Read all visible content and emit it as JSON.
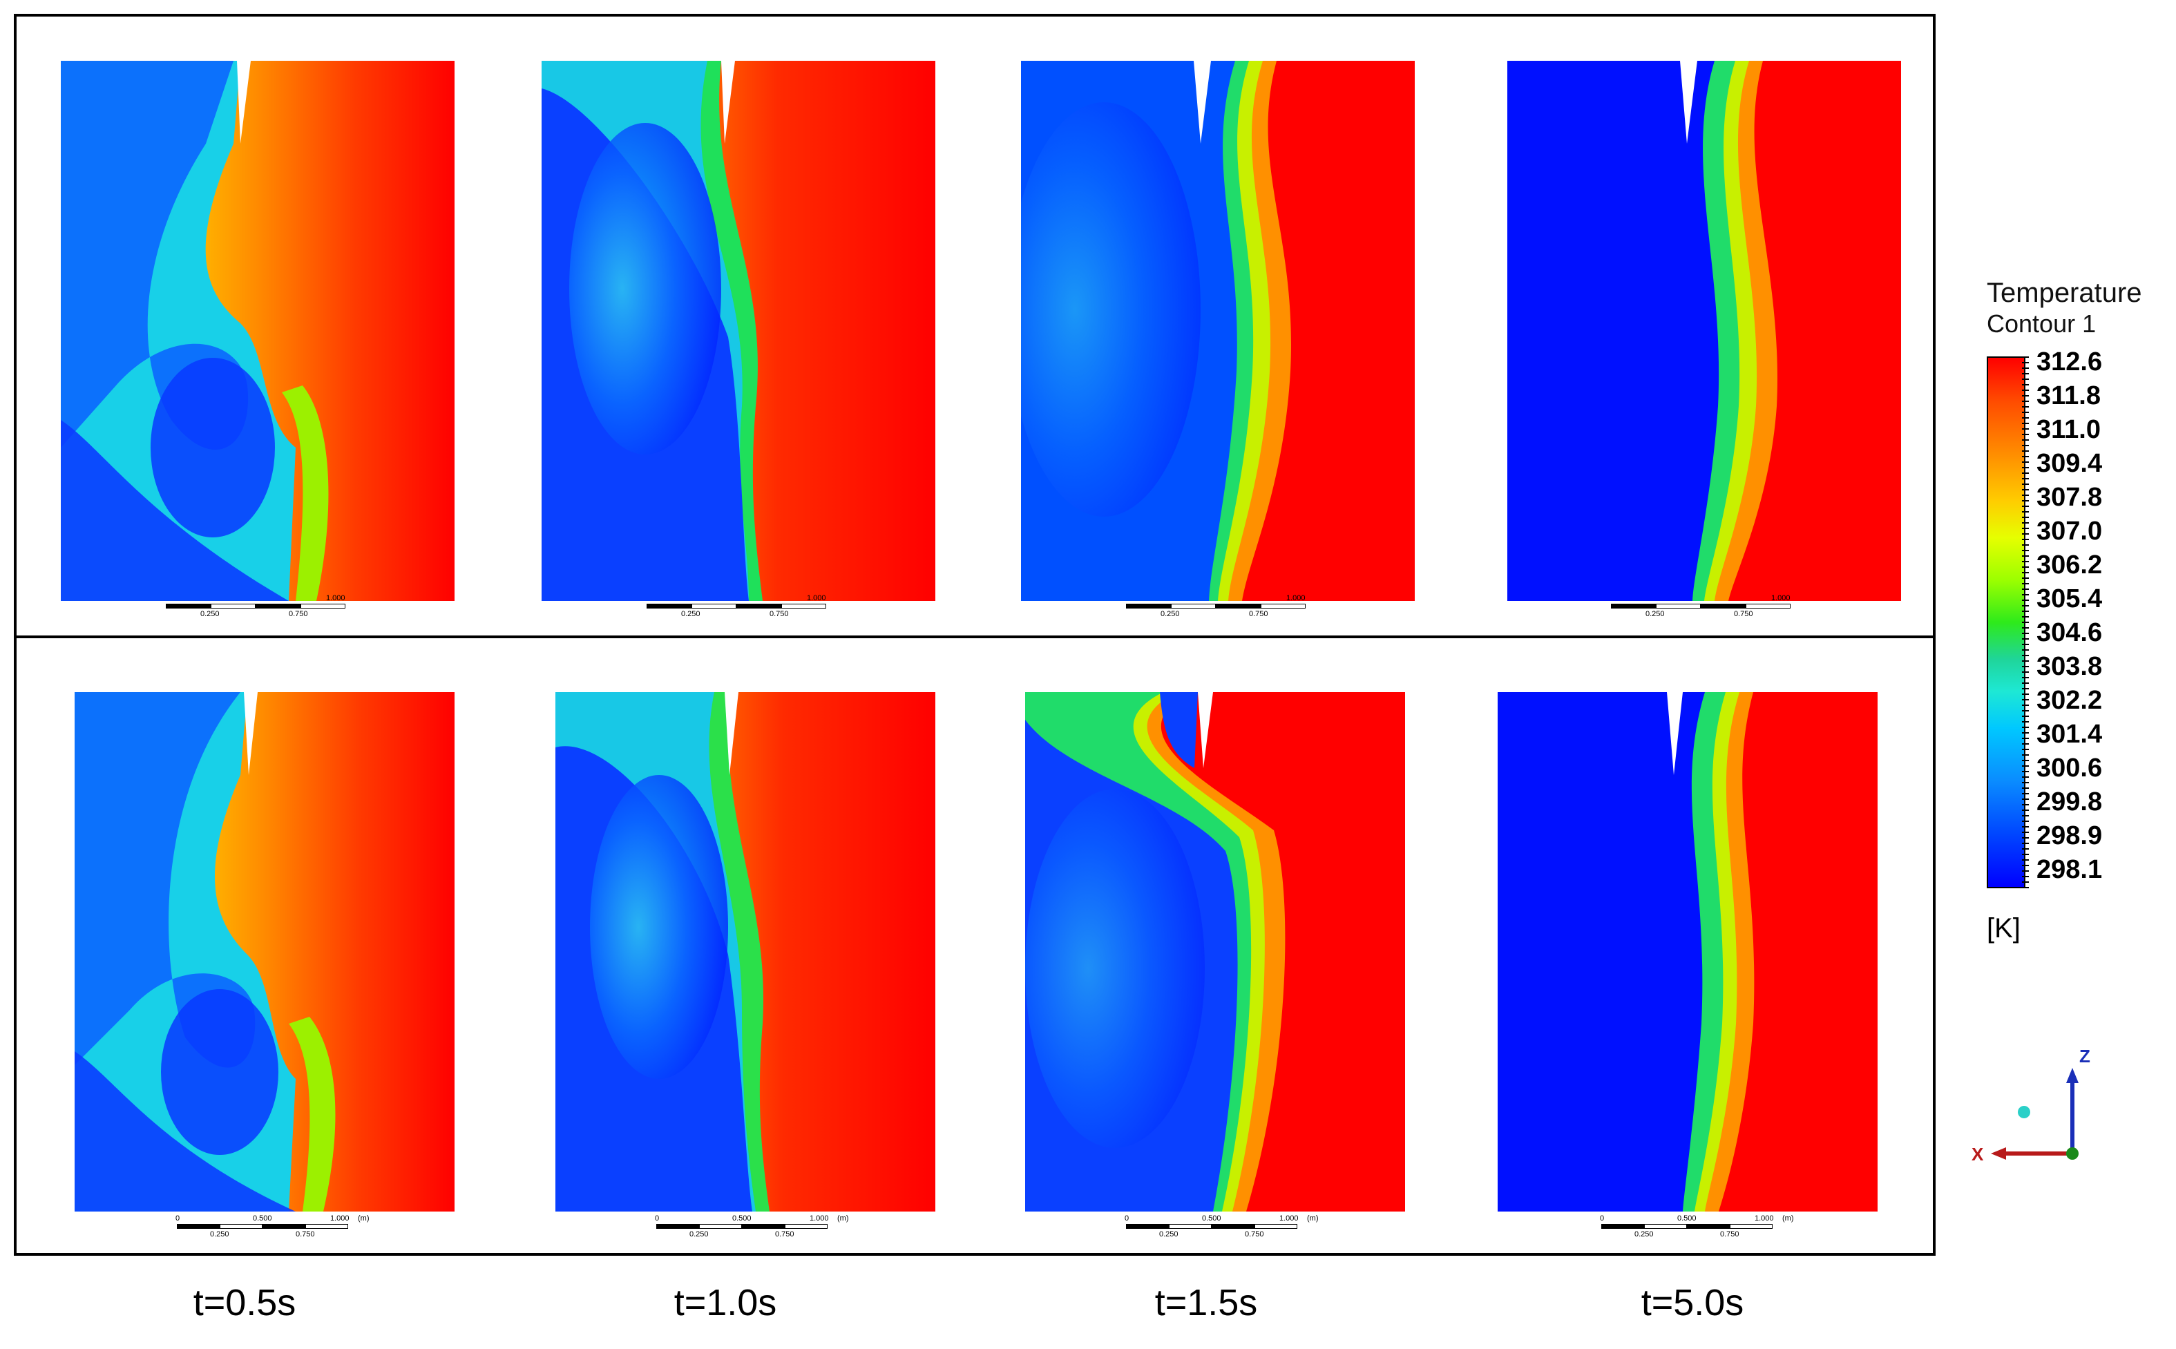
{
  "time_labels": [
    "t=0.5s",
    "t=1.0s",
    "t=1.5s",
    "t=5.0s"
  ],
  "scale_bar": {
    "top_labels": [
      "0",
      "0.500",
      "1.000",
      "(m)"
    ],
    "bottom_labels": [
      "0.250",
      "0.750"
    ]
  },
  "legend": {
    "title": "Temperature",
    "subtitle": "Contour 1",
    "values": [
      "312.6",
      "311.8",
      "311.0",
      "309.4",
      "307.8",
      "307.0",
      "306.2",
      "305.4",
      "304.6",
      "303.8",
      "302.2",
      "301.4",
      "300.6",
      "299.8",
      "298.9",
      "298.1"
    ],
    "unit": "[K]",
    "colors": {
      "max": "#ff0000",
      "min": "#0000ff"
    }
  },
  "axes_triad": {
    "z_label": "Z",
    "x_label": "X"
  }
}
